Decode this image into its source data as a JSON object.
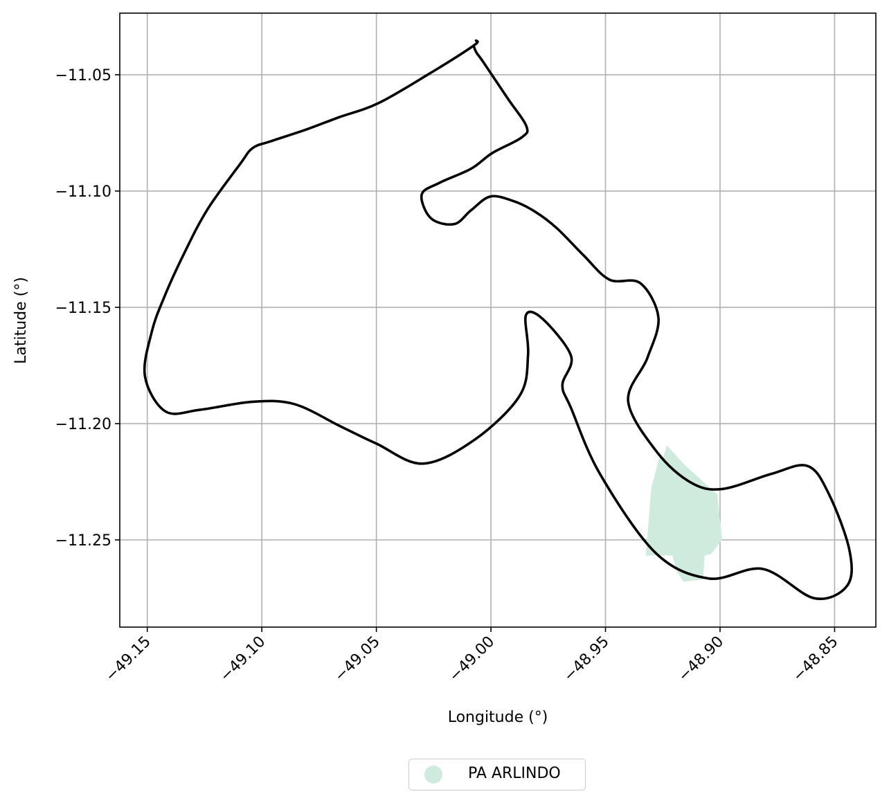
{
  "chart_data": {
    "type": "map",
    "xlabel": "Longitude (°)",
    "ylabel": "Latitude (°)",
    "xlim": [
      -49.162,
      -48.832
    ],
    "ylim": [
      -11.2875,
      -11.0235
    ],
    "grid": true,
    "x_ticks": [
      -49.15,
      -49.1,
      -49.05,
      -49.0,
      -48.95,
      -48.9,
      -48.85
    ],
    "x_tick_labels": [
      "−49.15",
      "−49.10",
      "−49.05",
      "−49.00",
      "−48.95",
      "−48.90",
      "−48.85"
    ],
    "y_ticks": [
      -11.05,
      -11.1,
      -11.15,
      -11.2,
      -11.25
    ],
    "y_tick_labels": [
      "−11.05",
      "−11.10",
      "−11.15",
      "−11.20",
      "−11.25"
    ],
    "legend_position": "below",
    "boundary": {
      "color": "#000000",
      "coordinates": [
        [
          -49.0065,
          -11.0353
        ],
        [
          -49.0076,
          -11.0375
        ],
        [
          -49.027,
          -11.0496
        ],
        [
          -49.0491,
          -11.0622
        ],
        [
          -49.0664,
          -11.0683
        ],
        [
          -49.0811,
          -11.0737
        ],
        [
          -49.0961,
          -11.0786
        ],
        [
          -49.104,
          -11.0815
        ],
        [
          -49.1095,
          -11.0884
        ],
        [
          -49.1238,
          -11.108
        ],
        [
          -49.1342,
          -11.1274
        ],
        [
          -49.1425,
          -11.1454
        ],
        [
          -49.148,
          -11.1604
        ],
        [
          -49.151,
          -11.1797
        ],
        [
          -49.142,
          -11.1948
        ],
        [
          -49.1268,
          -11.194
        ],
        [
          -49.104,
          -11.1906
        ],
        [
          -49.0858,
          -11.1916
        ],
        [
          -49.0658,
          -11.2011
        ],
        [
          -49.0498,
          -11.2087
        ],
        [
          -49.0297,
          -11.2172
        ],
        [
          -49.0071,
          -11.2069
        ],
        [
          -48.9875,
          -11.1881
        ],
        [
          -48.9838,
          -11.1704
        ],
        [
          -48.9847,
          -11.1533
        ],
        [
          -48.9774,
          -11.155
        ],
        [
          -48.965,
          -11.171
        ],
        [
          -48.9688,
          -11.1834
        ],
        [
          -48.965,
          -11.1934
        ],
        [
          -48.9523,
          -11.2218
        ],
        [
          -48.928,
          -11.2557
        ],
        [
          -48.9048,
          -11.2666
        ],
        [
          -48.8813,
          -11.2625
        ],
        [
          -48.8589,
          -11.2751
        ],
        [
          -48.8445,
          -11.2697
        ],
        [
          -48.8435,
          -11.2545
        ],
        [
          -48.8525,
          -11.2303
        ],
        [
          -48.8618,
          -11.2182
        ],
        [
          -48.8776,
          -11.2216
        ],
        [
          -48.8989,
          -11.2281
        ],
        [
          -48.9126,
          -11.2254
        ],
        [
          -48.9273,
          -11.2125
        ],
        [
          -48.9401,
          -11.1905
        ],
        [
          -48.9318,
          -11.1719
        ],
        [
          -48.9269,
          -11.1545
        ],
        [
          -48.9348,
          -11.1396
        ],
        [
          -48.9483,
          -11.1381
        ],
        [
          -48.9596,
          -11.1276
        ],
        [
          -48.9712,
          -11.116
        ],
        [
          -48.9805,
          -11.109
        ],
        [
          -48.9897,
          -11.1045
        ],
        [
          -49.0001,
          -11.1023
        ],
        [
          -49.0086,
          -11.1082
        ],
        [
          -49.016,
          -11.1142
        ],
        [
          -49.0262,
          -11.1117
        ],
        [
          -49.0302,
          -11.1015
        ],
        [
          -49.0223,
          -11.0964
        ],
        [
          -49.0087,
          -11.0904
        ],
        [
          -48.9995,
          -11.0837
        ],
        [
          -48.9867,
          -11.077
        ],
        [
          -48.9845,
          -11.0722
        ],
        [
          -48.9928,
          -11.06
        ],
        [
          -49.0035,
          -11.0443
        ],
        [
          -49.0063,
          -11.0405
        ],
        [
          -49.0076,
          -11.0375
        ]
      ]
    },
    "series": [
      {
        "name": "PA ARLINDO",
        "color": "#cfebdd",
        "type": "polygon",
        "coordinates": [
          [
            -48.9232,
            -11.2094
          ],
          [
            -48.9155,
            -11.2177
          ],
          [
            -48.9012,
            -11.2304
          ],
          [
            -48.8991,
            -11.2498
          ],
          [
            -48.9038,
            -11.256
          ],
          [
            -48.9067,
            -11.2567
          ],
          [
            -48.9074,
            -11.267
          ],
          [
            -48.916,
            -11.268
          ],
          [
            -48.9189,
            -11.2635
          ],
          [
            -48.9208,
            -11.2567
          ],
          [
            -48.9324,
            -11.2567
          ],
          [
            -48.93,
            -11.2275
          ],
          [
            -48.9266,
            -11.215
          ],
          [
            -48.9247,
            -11.2142
          ],
          [
            -48.9232,
            -11.2094
          ]
        ]
      }
    ]
  }
}
